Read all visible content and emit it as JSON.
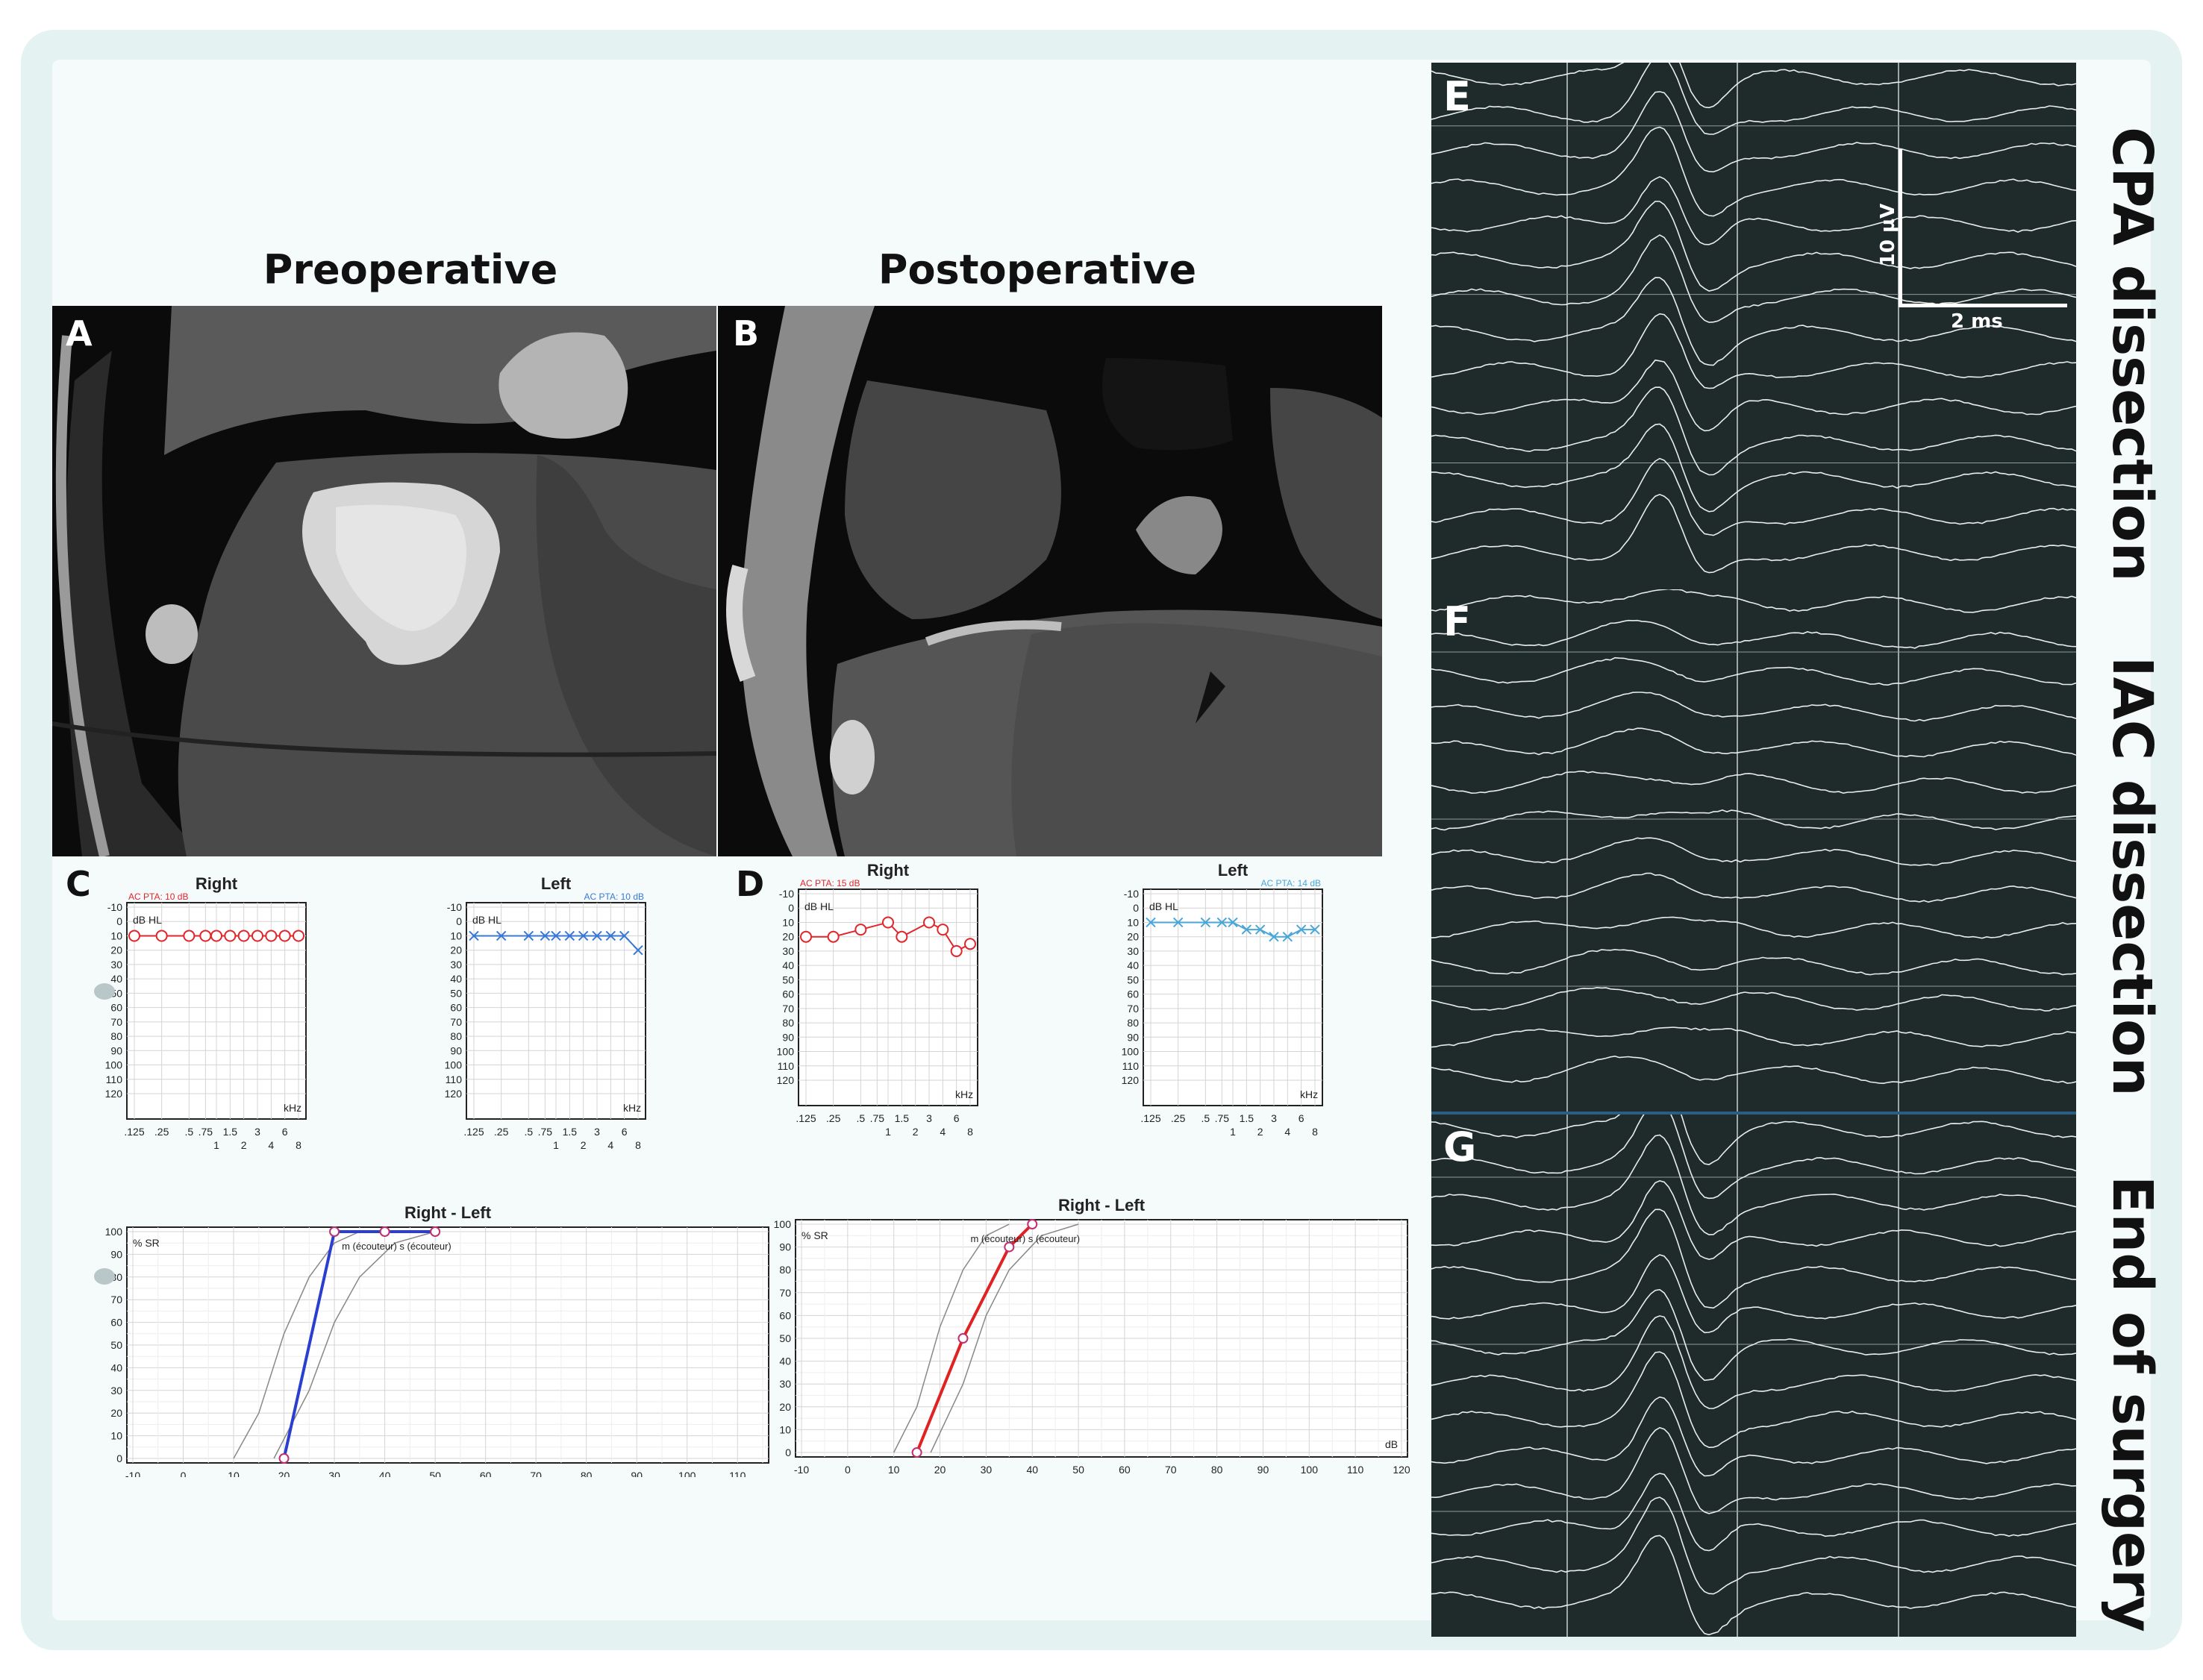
{
  "titles": {
    "preop": "Preoperative",
    "postop": "Postoperative"
  },
  "panel_letters": {
    "A": "A",
    "B": "B",
    "C": "C",
    "D": "D",
    "E": "E",
    "F": "F",
    "G": "G"
  },
  "side_labels": {
    "E": "CPA dissection",
    "F": "IAC dissection",
    "G": "End of surgery"
  },
  "scale_bar": {
    "voltage": "10 µV",
    "time": "2 ms"
  },
  "audiogram_axis": {
    "ylabel": "dB HL",
    "xlabel": "kHz",
    "yticks": [
      "-10",
      "0",
      "10",
      "20",
      "30",
      "40",
      "50",
      "60",
      "70",
      "80",
      "90",
      "100",
      "110",
      "120"
    ],
    "xticks_top": [
      ".125",
      ".25",
      ".5",
      ".75",
      "1.5",
      "3",
      "6"
    ],
    "xticks_bottom": [
      "1",
      "2",
      "4",
      "8"
    ]
  },
  "speech_axis": {
    "title": "Right - Left",
    "ylabel": "% SR",
    "yticks": [
      "100",
      "90",
      "80",
      "70",
      "60",
      "50",
      "40",
      "30",
      "20",
      "10",
      "0"
    ],
    "xticks_C": [
      "-10",
      "0",
      "10",
      "20",
      "30",
      "40",
      "50",
      "60",
      "70",
      "80",
      "90",
      "100",
      "110"
    ],
    "xticks_D": [
      "-10",
      "0",
      "10",
      "20",
      "30",
      "40",
      "50",
      "60",
      "70",
      "80",
      "90",
      "100",
      "110",
      "120"
    ],
    "xlabel_D": "dB",
    "legend_C": "m (écouteur) s (écouteur)",
    "legend_D": "m (écouteur) s (écouteur)"
  },
  "colors": {
    "right_ear": "#e0262b",
    "left_ear": "#3a78d6",
    "speech_C": "#2a3fd0",
    "speech_D": "#e02222",
    "trace": "#e8ecec",
    "eeg_bg": "#1f2a2a"
  },
  "chart_data": [
    {
      "id": "C-right",
      "type": "line",
      "title": "Right",
      "pta_label": "AC PTA: 10 dB",
      "x": [
        0.125,
        0.25,
        0.5,
        0.75,
        1,
        1.5,
        2,
        3,
        4,
        6,
        8
      ],
      "values": [
        10,
        10,
        10,
        10,
        10,
        10,
        10,
        10,
        10,
        10,
        10
      ],
      "xlabel": "kHz",
      "ylabel": "dB HL",
      "ylim": [
        120,
        -10
      ],
      "marker": "circle"
    },
    {
      "id": "C-left",
      "type": "line",
      "title": "Left",
      "pta_label": "AC PTA: 10 dB",
      "x": [
        0.125,
        0.25,
        0.5,
        0.75,
        1,
        1.5,
        2,
        3,
        4,
        6,
        8
      ],
      "values": [
        10,
        10,
        10,
        10,
        10,
        10,
        10,
        10,
        10,
        10,
        20
      ],
      "xlabel": "kHz",
      "ylabel": "dB HL",
      "ylim": [
        120,
        -10
      ],
      "marker": "x"
    },
    {
      "id": "D-right",
      "type": "line",
      "title": "Right",
      "pta_label": "AC PTA: 15 dB",
      "x": [
        0.125,
        0.25,
        0.5,
        1,
        1.5,
        3,
        4,
        6,
        8
      ],
      "values": [
        20,
        20,
        15,
        10,
        20,
        10,
        15,
        30,
        25
      ],
      "xlabel": "kHz",
      "ylabel": "dB HL",
      "ylim": [
        120,
        -10
      ],
      "marker": "circle"
    },
    {
      "id": "D-left",
      "type": "line",
      "title": "Left",
      "pta_label": "AC PTA: 14 dB",
      "x": [
        0.125,
        0.25,
        0.5,
        0.75,
        1,
        1.5,
        2,
        3,
        4,
        6,
        8
      ],
      "values": [
        10,
        10,
        10,
        10,
        10,
        15,
        15,
        20,
        20,
        15,
        15
      ],
      "xlabel": "kHz",
      "ylabel": "dB HL",
      "ylim": [
        120,
        -10
      ],
      "marker": "x"
    },
    {
      "id": "C-speech",
      "type": "line",
      "title": "Right - Left",
      "x": [
        20,
        30,
        40,
        50
      ],
      "values": [
        0,
        100,
        100,
        100
      ],
      "xlabel": "",
      "ylabel": "% SR",
      "xlim": [
        -10,
        115
      ],
      "ylim": [
        0,
        100
      ]
    },
    {
      "id": "D-speech",
      "type": "line",
      "title": "Right - Left",
      "x": [
        15,
        25,
        35,
        40
      ],
      "values": [
        0,
        50,
        90,
        100
      ],
      "xlabel": "dB",
      "ylabel": "% SR",
      "xlim": [
        -10,
        120
      ],
      "ylim": [
        0,
        100
      ]
    }
  ]
}
